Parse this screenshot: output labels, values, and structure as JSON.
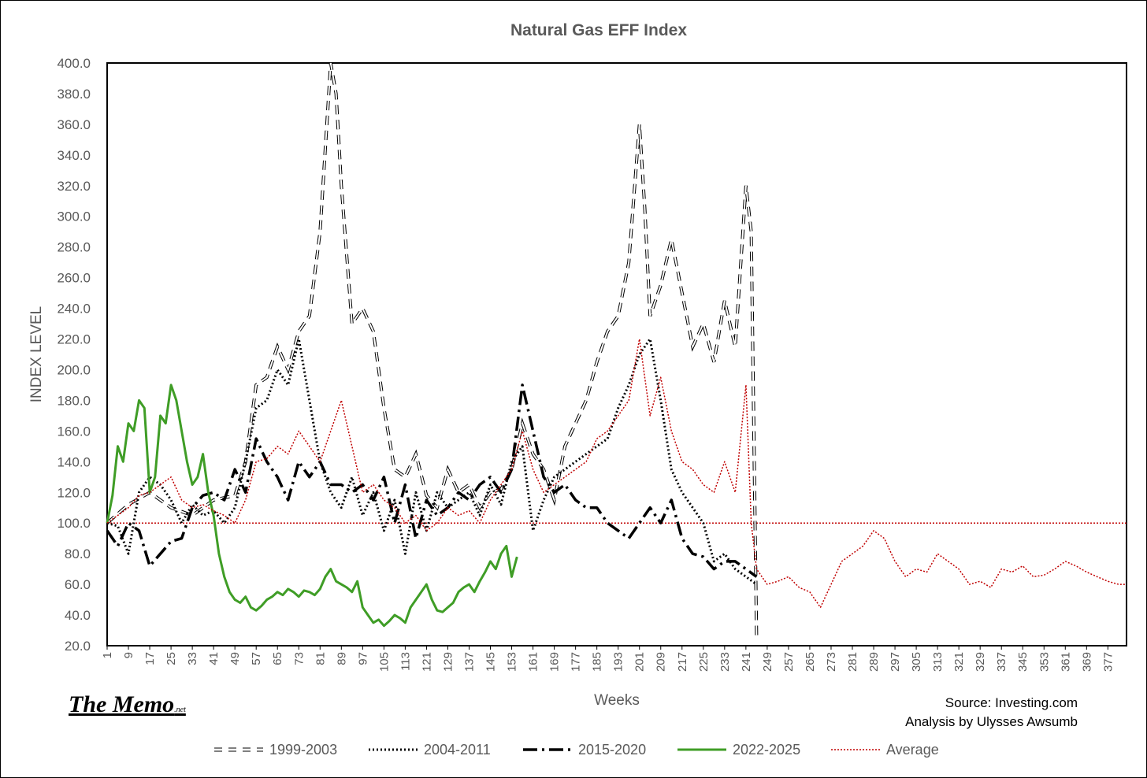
{
  "chart_data": {
    "type": "line",
    "title": "Natural Gas EFF Index",
    "xlabel": "Weeks",
    "ylabel": "INDEX LEVEL",
    "ylim": [
      20,
      400
    ],
    "yticks": [
      "20.0",
      "40.0",
      "60.0",
      "80.0",
      "100.0",
      "120.0",
      "140.0",
      "160.0",
      "180.0",
      "200.0",
      "220.0",
      "240.0",
      "260.0",
      "280.0",
      "300.0",
      "320.0",
      "340.0",
      "360.0",
      "380.0",
      "400.0"
    ],
    "xticks": [
      "1",
      "9",
      "17",
      "25",
      "33",
      "41",
      "49",
      "57",
      "65",
      "73",
      "81",
      "89",
      "97",
      "105",
      "113",
      "121",
      "129",
      "137",
      "145",
      "153",
      "161",
      "169",
      "177",
      "185",
      "193",
      "201",
      "209",
      "217",
      "225",
      "233",
      "241",
      "249",
      "257",
      "265",
      "273",
      "281",
      "289",
      "297",
      "305",
      "313",
      "321",
      "329",
      "337",
      "345",
      "353",
      "361",
      "369",
      "377"
    ],
    "xlim": [
      1,
      384
    ],
    "reference_line": 100,
    "legend_position": "bottom",
    "series": [
      {
        "name": "1999-2003",
        "color": "#000000",
        "style": "dash-outline",
        "x": [
          1,
          9,
          17,
          25,
          33,
          41,
          49,
          53,
          57,
          61,
          65,
          69,
          73,
          77,
          81,
          85,
          87,
          89,
          93,
          97,
          101,
          105,
          109,
          113,
          117,
          121,
          125,
          129,
          133,
          137,
          141,
          145,
          149,
          153,
          157,
          161,
          165,
          169,
          173,
          177,
          181,
          185,
          189,
          193,
          197,
          201,
          203,
          205,
          209,
          213,
          217,
          221,
          225,
          229,
          233,
          237,
          241,
          243,
          245
        ],
        "values": [
          100,
          112,
          120,
          110,
          105,
          115,
          118,
          140,
          190,
          195,
          215,
          200,
          225,
          235,
          290,
          400,
          380,
          320,
          230,
          240,
          225,
          175,
          135,
          130,
          145,
          118,
          110,
          135,
          120,
          125,
          110,
          120,
          122,
          135,
          165,
          145,
          135,
          115,
          150,
          165,
          180,
          205,
          225,
          235,
          270,
          360,
          305,
          235,
          255,
          285,
          250,
          215,
          230,
          205,
          245,
          215,
          320,
          290,
          25
        ]
      },
      {
        "name": "2004-2011",
        "color": "#000000",
        "style": "dotted",
        "x": [
          1,
          5,
          9,
          13,
          17,
          21,
          25,
          29,
          33,
          37,
          41,
          45,
          49,
          53,
          57,
          61,
          65,
          69,
          73,
          77,
          81,
          85,
          89,
          93,
          97,
          101,
          105,
          109,
          113,
          117,
          121,
          125,
          129,
          133,
          137,
          141,
          145,
          149,
          153,
          157,
          161,
          165,
          169,
          173,
          177,
          181,
          185,
          189,
          193,
          197,
          201,
          205,
          209,
          213,
          217,
          221,
          225,
          229,
          233,
          237,
          241,
          245
        ],
        "values": [
          100,
          98,
          80,
          120,
          130,
          125,
          115,
          100,
          112,
          105,
          108,
          100,
          110,
          140,
          175,
          180,
          200,
          190,
          220,
          180,
          140,
          120,
          110,
          130,
          105,
          120,
          95,
          115,
          80,
          120,
          95,
          120,
          110,
          115,
          120,
          105,
          125,
          112,
          140,
          150,
          95,
          115,
          130,
          135,
          140,
          145,
          150,
          155,
          175,
          190,
          210,
          220,
          180,
          135,
          120,
          110,
          100,
          75,
          80,
          70,
          65,
          60
        ]
      },
      {
        "name": "2015-2020",
        "color": "#000000",
        "style": "long-dash-dot",
        "x": [
          1,
          5,
          9,
          13,
          17,
          21,
          25,
          29,
          33,
          37,
          41,
          45,
          49,
          53,
          57,
          61,
          65,
          69,
          73,
          77,
          81,
          85,
          89,
          93,
          97,
          101,
          105,
          109,
          113,
          117,
          121,
          125,
          129,
          133,
          137,
          141,
          145,
          149,
          153,
          157,
          161,
          165,
          169,
          173,
          177,
          181,
          185,
          189,
          193,
          197,
          201,
          205,
          209,
          213,
          217,
          221,
          225,
          229,
          233,
          237,
          241,
          245
        ],
        "values": [
          95,
          85,
          100,
          95,
          72,
          80,
          88,
          90,
          110,
          118,
          120,
          115,
          135,
          120,
          155,
          140,
          130,
          115,
          140,
          130,
          140,
          125,
          125,
          120,
          125,
          115,
          130,
          100,
          125,
          90,
          115,
          105,
          110,
          120,
          115,
          125,
          130,
          120,
          135,
          190,
          160,
          130,
          120,
          125,
          115,
          110,
          110,
          100,
          95,
          90,
          100,
          110,
          100,
          115,
          90,
          80,
          78,
          70,
          75,
          75,
          70,
          65
        ]
      },
      {
        "name": "2022-2025",
        "color": "#3f9d26",
        "style": "solid",
        "x": [
          1,
          3,
          5,
          7,
          9,
          11,
          13,
          15,
          17,
          19,
          21,
          23,
          25,
          27,
          29,
          31,
          33,
          35,
          37,
          39,
          41,
          43,
          45,
          47,
          49,
          51,
          53,
          55,
          57,
          59,
          61,
          63,
          65,
          67,
          69,
          71,
          73,
          75,
          77,
          79,
          81,
          83,
          85,
          87,
          89,
          91,
          93,
          95,
          97,
          99,
          101,
          103,
          105,
          107,
          109,
          111,
          113,
          115,
          117,
          119,
          121,
          123,
          125,
          127,
          129,
          131,
          133,
          135,
          137,
          139,
          141,
          143,
          145,
          147,
          149,
          151,
          153,
          155
        ],
        "values": [
          100,
          118,
          150,
          140,
          165,
          160,
          180,
          175,
          120,
          130,
          170,
          165,
          190,
          180,
          160,
          140,
          125,
          130,
          145,
          120,
          105,
          80,
          65,
          55,
          50,
          48,
          52,
          45,
          43,
          46,
          50,
          52,
          55,
          53,
          57,
          55,
          52,
          56,
          55,
          53,
          57,
          65,
          70,
          62,
          60,
          58,
          55,
          62,
          45,
          40,
          35,
          37,
          33,
          36,
          40,
          38,
          35,
          45,
          50,
          55,
          60,
          50,
          43,
          42,
          45,
          48,
          55,
          58,
          60,
          55,
          62,
          68,
          75,
          70,
          80,
          85,
          65,
          78
        ]
      },
      {
        "name": "Average",
        "color": "#c00000",
        "style": "fine-dotted",
        "x": [
          1,
          5,
          9,
          13,
          17,
          21,
          25,
          29,
          33,
          37,
          41,
          45,
          49,
          53,
          57,
          61,
          65,
          69,
          73,
          77,
          81,
          85,
          89,
          93,
          97,
          101,
          105,
          109,
          113,
          117,
          121,
          125,
          129,
          133,
          137,
          141,
          145,
          149,
          153,
          157,
          161,
          165,
          169,
          173,
          177,
          181,
          185,
          189,
          193,
          197,
          201,
          205,
          209,
          213,
          217,
          221,
          225,
          229,
          233,
          237,
          241,
          243,
          245,
          249,
          253,
          257,
          261,
          265,
          269,
          273,
          277,
          281,
          285,
          289,
          293,
          297,
          301,
          305,
          309,
          313,
          317,
          321,
          325,
          329,
          333,
          337,
          341,
          345,
          349,
          353,
          357,
          361,
          365,
          369,
          373,
          377,
          381,
          384
        ],
        "values": [
          100,
          105,
          110,
          118,
          120,
          125,
          130,
          115,
          110,
          112,
          108,
          105,
          100,
          115,
          140,
          142,
          150,
          145,
          160,
          150,
          140,
          160,
          180,
          150,
          120,
          125,
          115,
          110,
          100,
          105,
          95,
          100,
          110,
          105,
          108,
          100,
          115,
          125,
          135,
          160,
          135,
          120,
          125,
          130,
          135,
          140,
          155,
          160,
          170,
          180,
          220,
          170,
          195,
          160,
          140,
          135,
          125,
          120,
          140,
          120,
          190,
          100,
          70,
          60,
          62,
          65,
          58,
          55,
          45,
          60,
          75,
          80,
          85,
          95,
          90,
          75,
          65,
          70,
          68,
          80,
          75,
          70,
          60,
          62,
          58,
          70,
          68,
          72,
          65,
          66,
          70,
          75,
          72,
          68,
          65,
          62,
          60,
          60
        ]
      }
    ]
  },
  "source_text": "Source: Investing.com",
  "analysis_text": "Analysis by Ulysses Awsumb",
  "logo": {
    "main": "The Memo",
    "suffix": ".net"
  }
}
